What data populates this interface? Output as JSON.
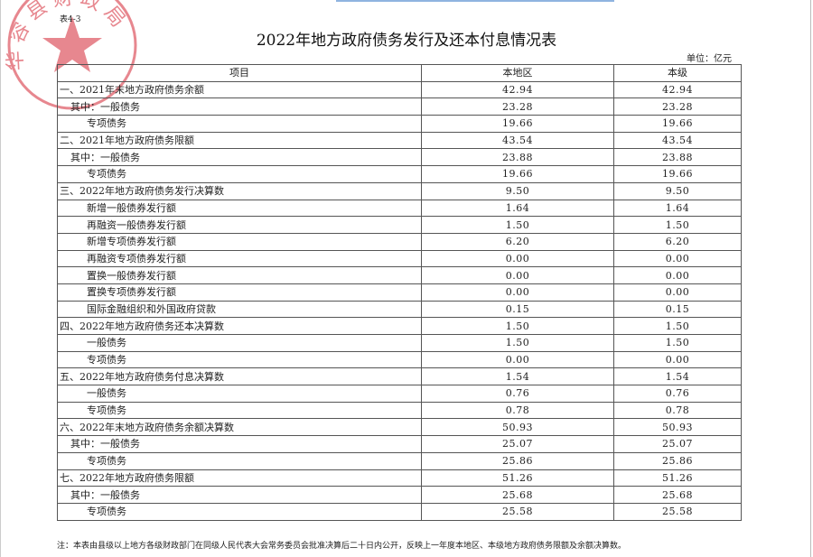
{
  "stamp_text": "华容县财政局",
  "table_no": "表4-3",
  "title": "2022年地方政府债务发行及还本付息情况表",
  "unit": "单位：亿元",
  "headers": [
    "项目",
    "本地区",
    "本级"
  ],
  "rows": [
    {
      "label": "一、2021年末地方政府债务余额",
      "level": 0,
      "local": "42.94",
      "own": "42.94"
    },
    {
      "label": "其中：一般债务",
      "level": 1,
      "local": "23.28",
      "own": "23.28"
    },
    {
      "label": "专项债务",
      "level": 2,
      "local": "19.66",
      "own": "19.66"
    },
    {
      "label": "二、2021年地方政府债务限额",
      "level": 0,
      "local": "43.54",
      "own": "43.54"
    },
    {
      "label": "其中：一般债务",
      "level": 1,
      "local": "23.88",
      "own": "23.88"
    },
    {
      "label": "专项债务",
      "level": 2,
      "local": "19.66",
      "own": "19.66"
    },
    {
      "label": "三、2022年地方政府债务发行决算数",
      "level": 0,
      "local": "9.50",
      "own": "9.50"
    },
    {
      "label": "新增一般债券发行额",
      "level": 2,
      "local": "1.64",
      "own": "1.64"
    },
    {
      "label": "再融资一般债券发行额",
      "level": 2,
      "local": "1.50",
      "own": "1.50"
    },
    {
      "label": "新增专项债券发行额",
      "level": 2,
      "local": "6.20",
      "own": "6.20"
    },
    {
      "label": "再融资专项债券发行额",
      "level": 2,
      "local": "0.00",
      "own": "0.00"
    },
    {
      "label": "置换一般债券发行额",
      "level": 2,
      "local": "0.00",
      "own": "0.00"
    },
    {
      "label": "置换专项债券发行额",
      "level": 2,
      "local": "0.00",
      "own": "0.00"
    },
    {
      "label": "国际金融组织和外国政府贷款",
      "level": 2,
      "local": "0.15",
      "own": "0.15"
    },
    {
      "label": "四、2022年地方政府债务还本决算数",
      "level": 0,
      "local": "1.50",
      "own": "1.50"
    },
    {
      "label": "一般债务",
      "level": 2,
      "local": "1.50",
      "own": "1.50"
    },
    {
      "label": "专项债务",
      "level": 2,
      "local": "0.00",
      "own": "0.00"
    },
    {
      "label": "五、2022年地方政府债务付息决算数",
      "level": 0,
      "local": "1.54",
      "own": "1.54"
    },
    {
      "label": "一般债务",
      "level": 2,
      "local": "0.76",
      "own": "0.76"
    },
    {
      "label": "专项债务",
      "level": 2,
      "local": "0.78",
      "own": "0.78"
    },
    {
      "label": "六、2022年末地方政府债务余额决算数",
      "level": 0,
      "local": "50.93",
      "own": "50.93"
    },
    {
      "label": "其中：一般债务",
      "level": 1,
      "local": "25.07",
      "own": "25.07"
    },
    {
      "label": "专项债务",
      "level": 2,
      "local": "25.86",
      "own": "25.86"
    },
    {
      "label": "七、2022年地方政府债务限额",
      "level": 0,
      "local": "51.26",
      "own": "51.26"
    },
    {
      "label": "其中：一般债务",
      "level": 1,
      "local": "25.68",
      "own": "25.68"
    },
    {
      "label": "专项债务",
      "level": 2,
      "local": "25.58",
      "own": "25.58"
    }
  ],
  "note": "注：本表由县级以上地方各级财政部门在同级人民代表大会常务委员会批准决算后二十日内公开，反映上一年度本地区、本级地方政府债务限额及余额决算数。",
  "colors": {
    "stamp": "#e0606a"
  }
}
